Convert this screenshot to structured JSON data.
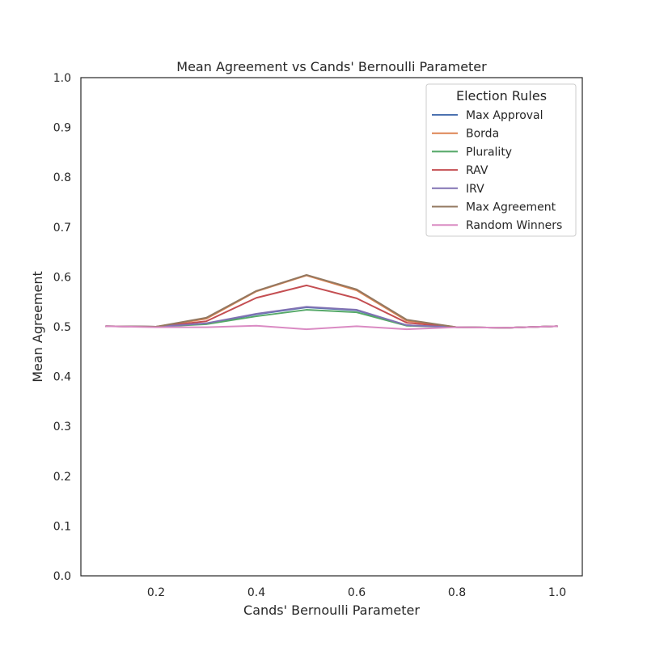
{
  "chart_data": {
    "type": "line",
    "title": "Mean Agreement vs Cands' Bernoulli Parameter",
    "xlabel": "Cands' Bernoulli Parameter",
    "ylabel": "Mean Agreement",
    "xlim": [
      0.05,
      1.05
    ],
    "ylim": [
      0.0,
      1.0
    ],
    "xticks": [
      "0.2",
      "0.4",
      "0.6",
      "0.8",
      "1.0"
    ],
    "yticks": [
      "0.0",
      "0.1",
      "0.2",
      "0.3",
      "0.4",
      "0.5",
      "0.6",
      "0.7",
      "0.8",
      "0.9",
      "1.0"
    ],
    "grid": false,
    "legend_title": "Election Rules",
    "legend_position": "top-right",
    "x": [
      0.1,
      0.2,
      0.3,
      0.4,
      0.5,
      0.6,
      0.7,
      0.8,
      0.9,
      1.0
    ],
    "series": [
      {
        "name": "Max Approval",
        "color": "#4c72b0",
        "values": [
          0.501,
          0.5,
          0.506,
          0.525,
          0.539,
          0.533,
          0.503,
          0.499,
          0.498,
          0.501
        ]
      },
      {
        "name": "Borda",
        "color": "#dd8452",
        "values": [
          0.501,
          0.5,
          0.516,
          0.571,
          0.603,
          0.573,
          0.512,
          0.499,
          0.498,
          0.501
        ]
      },
      {
        "name": "Plurality",
        "color": "#55a868",
        "values": [
          0.501,
          0.5,
          0.505,
          0.521,
          0.534,
          0.529,
          0.502,
          0.499,
          0.498,
          0.501
        ]
      },
      {
        "name": "RAV",
        "color": "#c44e52",
        "values": [
          0.501,
          0.5,
          0.511,
          0.558,
          0.583,
          0.557,
          0.508,
          0.499,
          0.498,
          0.501
        ]
      },
      {
        "name": "IRV",
        "color": "#8172b3",
        "values": [
          0.501,
          0.5,
          0.507,
          0.526,
          0.54,
          0.534,
          0.503,
          0.499,
          0.498,
          0.501
        ]
      },
      {
        "name": "Max Agreement",
        "color": "#937860",
        "values": [
          0.501,
          0.5,
          0.518,
          0.572,
          0.604,
          0.575,
          0.514,
          0.499,
          0.498,
          0.501
        ]
      },
      {
        "name": "Random Winners",
        "color": "#da8bc3",
        "values": [
          0.501,
          0.499,
          0.499,
          0.502,
          0.495,
          0.501,
          0.495,
          0.499,
          0.498,
          0.501
        ]
      }
    ]
  }
}
